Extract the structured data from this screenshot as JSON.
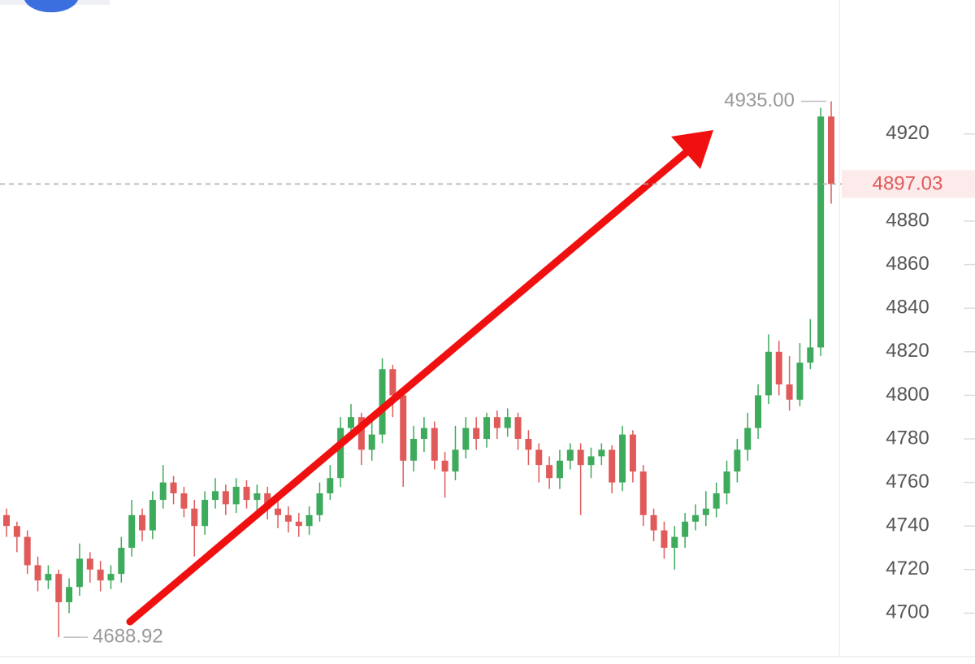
{
  "chart_data": {
    "type": "candlestick",
    "open": [
      4745,
      4740,
      4735,
      4722,
      4715,
      4718,
      4705,
      4712,
      4725,
      4720,
      4715,
      4718,
      4730,
      4745,
      4738,
      4752,
      4760,
      4755,
      4748,
      4740,
      4752,
      4756,
      4750,
      4758,
      4752,
      4755,
      4748,
      4745,
      4742,
      4740,
      4745,
      4755,
      4762,
      4785,
      4790,
      4775,
      4782,
      4812,
      4800,
      4770,
      4780,
      4785,
      4770,
      4765,
      4775,
      4785,
      4780,
      4790,
      4785,
      4790,
      4780,
      4775,
      4768,
      4762,
      4770,
      4775,
      4768,
      4772,
      4775,
      4760,
      4782,
      4765,
      4745,
      4738,
      4730,
      4735,
      4742,
      4745,
      4748,
      4755,
      4765,
      4775,
      4785,
      4800,
      4820,
      4805,
      4798,
      4815,
      4822,
      4928
    ],
    "high": [
      4748,
      4742,
      4738,
      4726,
      4722,
      4720,
      4716,
      4732,
      4728,
      4724,
      4722,
      4735,
      4752,
      4748,
      4756,
      4768,
      4763,
      4758,
      4752,
      4756,
      4762,
      4759,
      4762,
      4761,
      4759,
      4758,
      4752,
      4749,
      4746,
      4749,
      4760,
      4768,
      4790,
      4796,
      4792,
      4788,
      4817,
      4814,
      4802,
      4786,
      4790,
      4788,
      4774,
      4786,
      4790,
      4790,
      4792,
      4793,
      4794,
      4792,
      4784,
      4778,
      4772,
      4775,
      4778,
      4778,
      4776,
      4778,
      4777,
      4786,
      4784,
      4768,
      4748,
      4742,
      4740,
      4746,
      4750,
      4756,
      4760,
      4770,
      4780,
      4792,
      4805,
      4828,
      4825,
      4818,
      4824,
      4835,
      4932,
      4935
    ],
    "low": [
      4735,
      4728,
      4718,
      4710,
      4711,
      4688.92,
      4700,
      4708,
      4714,
      4710,
      4711,
      4714,
      4726,
      4733,
      4734,
      4748,
      4750,
      4744,
      4726,
      4736,
      4748,
      4745,
      4746,
      4748,
      4747,
      4743,
      4739,
      4737,
      4735,
      4736,
      4742,
      4752,
      4758,
      4780,
      4768,
      4770,
      4778,
      4790,
      4758,
      4765,
      4774,
      4766,
      4753,
      4761,
      4771,
      4775,
      4776,
      4780,
      4781,
      4775,
      4768,
      4760,
      4757,
      4757,
      4766,
      4745,
      4762,
      4768,
      4755,
      4756,
      4760,
      4740,
      4733,
      4725,
      4720,
      4730,
      4738,
      4740,
      4744,
      4750,
      4760,
      4770,
      4780,
      4796,
      4800,
      4793,
      4795,
      4812,
      4818,
      4888
    ],
    "close": [
      4740,
      4735,
      4722,
      4715,
      4718,
      4705,
      4712,
      4725,
      4720,
      4715,
      4718,
      4730,
      4745,
      4738,
      4752,
      4760,
      4755,
      4748,
      4740,
      4752,
      4756,
      4750,
      4758,
      4752,
      4755,
      4748,
      4745,
      4742,
      4740,
      4745,
      4755,
      4762,
      4785,
      4790,
      4775,
      4782,
      4812,
      4800,
      4770,
      4780,
      4785,
      4770,
      4765,
      4775,
      4785,
      4780,
      4790,
      4785,
      4790,
      4780,
      4775,
      4768,
      4762,
      4770,
      4775,
      4768,
      4772,
      4775,
      4760,
      4782,
      4765,
      4745,
      4738,
      4730,
      4735,
      4742,
      4745,
      4748,
      4755,
      4765,
      4775,
      4785,
      4800,
      4820,
      4805,
      4798,
      4815,
      4822,
      4928,
      4897
    ],
    "up_color": "#3daa5c",
    "down_color": "#e05a5a",
    "ylim": [
      4680,
      4981.5
    ],
    "yticks": [
      4700,
      4720,
      4740,
      4760,
      4780,
      4800,
      4820,
      4840,
      4860,
      4880,
      4920
    ],
    "last_price": 4897.03,
    "high_label": {
      "value": 4935,
      "label": "4935.00"
    },
    "low_label": 4688.92
  }
}
